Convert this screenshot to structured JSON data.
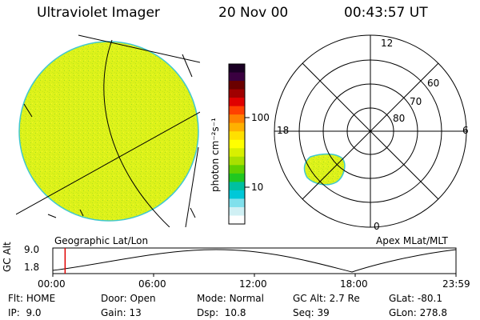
{
  "header": {
    "instrument": "Ultraviolet Imager",
    "date": "20 Nov 00",
    "time": "00:43:57 UT"
  },
  "colorbar": {
    "unit_label": "photon cm⁻²s⁻¹",
    "ticks": [
      "100",
      "10"
    ],
    "colors": [
      "#1a0024",
      "#3a0040",
      "#6a0000",
      "#a00000",
      "#e00000",
      "#ff4000",
      "#ff8000",
      "#ffb000",
      "#ffe000",
      "#ffff00",
      "#d8f000",
      "#a8e000",
      "#60d000",
      "#20c820",
      "#00c0a0",
      "#00c8d8",
      "#80e0ec",
      "#d0f0f4",
      "#ffffff"
    ]
  },
  "left_panel": {
    "label": "Geographic Lat/Lon",
    "fill_color": "#ddf21a"
  },
  "right_panel": {
    "label": "Apex MLat/MLT",
    "mlt_labels": [
      "12",
      "18",
      "6",
      "0"
    ],
    "lat_labels": [
      "60",
      "70",
      "80"
    ]
  },
  "altitude_strip": {
    "ylabel": "GC Alt",
    "yticks": [
      "9.0",
      "1.8"
    ],
    "xticks": [
      "00:00",
      "06:00",
      "12:00",
      "18:00",
      "23:59"
    ],
    "current_time_fraction": 0.0305
  },
  "status": {
    "flt_label": "Flt:",
    "flt_value": "HOME",
    "ip_label": "IP:",
    "ip_value": "9.0",
    "door_label": "Door:",
    "door_value": "Open",
    "gain_label": "Gain:",
    "gain_value": "13",
    "mode_label": "Mode:",
    "mode_value": "Normal",
    "dsp_label": "Dsp:",
    "dsp_value": "10.8",
    "gcalt_label": "GC Alt:",
    "gcalt_value": "2.7 Re",
    "seq_label": "Seq:",
    "seq_value": "39",
    "glat_label": "GLat:",
    "glat_value": "-80.1",
    "glon_label": "GLon:",
    "glon_value": "278.8"
  }
}
